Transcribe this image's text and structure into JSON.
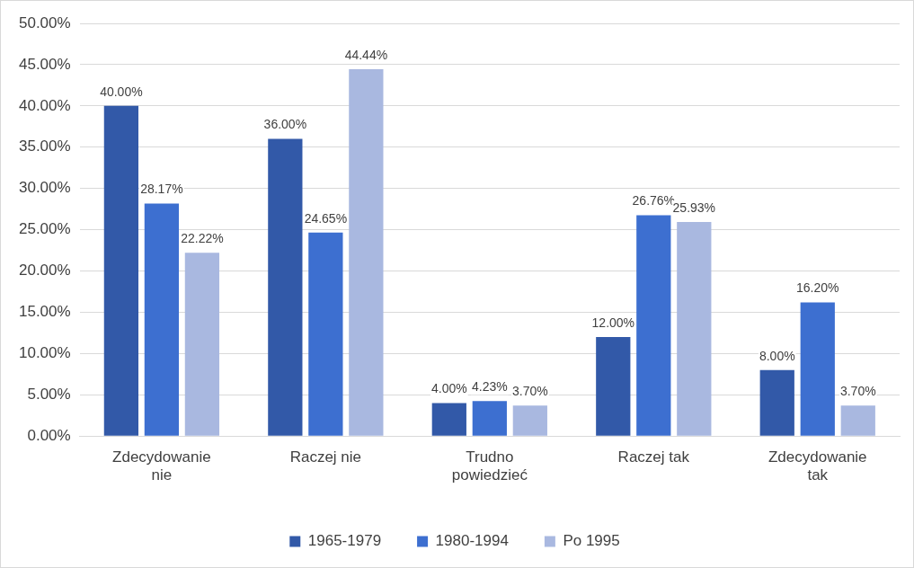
{
  "chart_data": {
    "type": "bar",
    "categories": [
      "Zdecydowanie nie",
      "Raczej nie",
      "Trudno powiedzieć",
      "Raczej tak",
      "Zdecydowanie tak"
    ],
    "series": [
      {
        "name": "1965-1979",
        "color": "#3259a8",
        "values": [
          40.0,
          36.0,
          4.0,
          12.0,
          8.0
        ],
        "value_labels": [
          "40.00%",
          "36.00%",
          "4.00%",
          "12.00%",
          "8.00%"
        ]
      },
      {
        "name": "1980-1994",
        "color": "#3d6fd0",
        "values": [
          28.17,
          24.65,
          4.23,
          26.76,
          16.2
        ],
        "value_labels": [
          "28.17%",
          "24.65%",
          "4.23%",
          "26.76%",
          "16.20%"
        ]
      },
      {
        "name": "Po 1995",
        "color": "#a9b8e0",
        "values": [
          22.22,
          44.44,
          3.7,
          25.93,
          3.7
        ],
        "value_labels": [
          "22.22%",
          "44.44%",
          "3.70%",
          "25.93%",
          "3.70%"
        ]
      }
    ],
    "ylim": [
      0,
      50
    ],
    "yticks": [
      {
        "value": 0,
        "label": "0.00%"
      },
      {
        "value": 5,
        "label": "5.00%"
      },
      {
        "value": 10,
        "label": "10.00%"
      },
      {
        "value": 15,
        "label": "15.00%"
      },
      {
        "value": 20,
        "label": "20.00%"
      },
      {
        "value": 25,
        "label": "25.00%"
      },
      {
        "value": 30,
        "label": "30.00%"
      },
      {
        "value": 35,
        "label": "35.00%"
      },
      {
        "value": 40,
        "label": "40.00%"
      },
      {
        "value": 45,
        "label": "45.00%"
      },
      {
        "value": 50,
        "label": "50.00%"
      }
    ],
    "grid": "y",
    "legend": "bottom"
  }
}
